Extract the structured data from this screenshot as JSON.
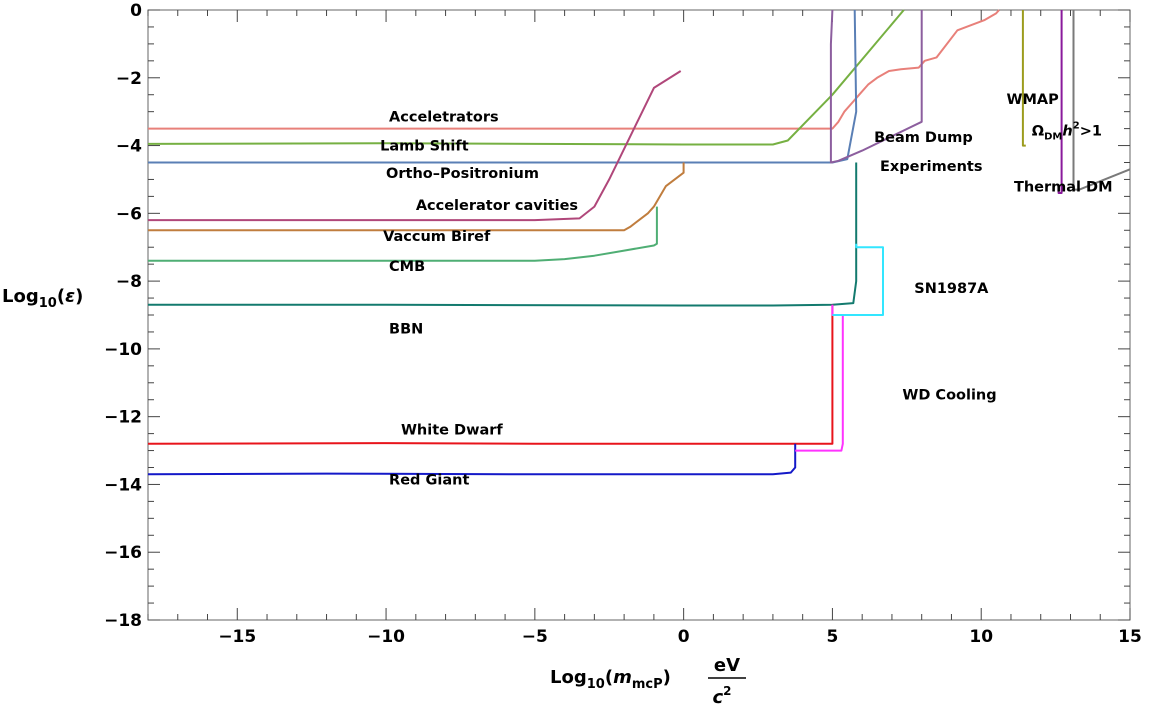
{
  "chart_data": {
    "type": "line",
    "title": "",
    "xlabel": {
      "prefix": "Log",
      "sub": "10",
      "open": "(",
      "var": "m",
      "var_sub": "mcP",
      "close": ")",
      "unit_num": "eV",
      "unit_den": "c",
      "unit_den_sup": "2"
    },
    "ylabel": {
      "prefix": "Log",
      "sub": "10",
      "open": "(",
      "var": "ε",
      "close": ")"
    },
    "xlim": [
      -18,
      15
    ],
    "ylim": [
      -18,
      0
    ],
    "xticks": [
      -15,
      -10,
      -5,
      0,
      5,
      10,
      15
    ],
    "xtick_labels": [
      "−15",
      "−10",
      "−5",
      "0",
      "5",
      "10",
      "15"
    ],
    "yticks": [
      0,
      -2,
      -4,
      -6,
      -8,
      -10,
      -12,
      -14,
      -16,
      -18
    ],
    "ytick_labels": [
      "0",
      "−2",
      "−4",
      "−6",
      "−8",
      "−10",
      "−12",
      "−14",
      "−16",
      "−18"
    ],
    "grid": false,
    "series": [
      {
        "name": "Acceletrators",
        "color": "#e8807a",
        "x": [
          -18,
          -10,
          0,
          5,
          5.2,
          5.4,
          5.7,
          5.9,
          6.2,
          6.5,
          6.9,
          7.3,
          7.9,
          8.1,
          8.5,
          9.2,
          10.1,
          10.5,
          10.6
        ],
        "y": [
          -3.5,
          -3.5,
          -3.5,
          -3.5,
          -3.3,
          -3.0,
          -2.7,
          -2.5,
          -2.2,
          -2.0,
          -1.8,
          -1.75,
          -1.7,
          -1.5,
          -1.4,
          -0.6,
          -0.3,
          -0.1,
          0
        ]
      },
      {
        "name": "Lamb Shift",
        "color": "#76b042",
        "x": [
          -18,
          -10,
          -5,
          0,
          3,
          3.5,
          5,
          7.4
        ],
        "y": [
          -3.95,
          -3.93,
          -3.95,
          -3.97,
          -3.97,
          -3.85,
          -2.5,
          0
        ]
      },
      {
        "name": "Ortho–Positronium",
        "color": "#5a7fb5",
        "x": [
          -18,
          -10,
          0,
          2.4,
          3.8,
          5,
          5.5,
          5.8,
          5.75
        ],
        "y": [
          -4.5,
          -4.5,
          -4.5,
          -4.5,
          -4.5,
          -4.5,
          -4.4,
          -3.0,
          0
        ]
      },
      {
        "name": "Accelerator cavities",
        "color": "#b0477a",
        "x": [
          -18,
          -10,
          -5,
          -3.5,
          -3,
          -2.5,
          -2,
          -1.5,
          -1,
          -0.1
        ],
        "y": [
          -6.2,
          -6.2,
          -6.2,
          -6.15,
          -5.8,
          -5.0,
          -4.1,
          -3.2,
          -2.3,
          -1.8
        ]
      },
      {
        "name": "Vaccum Biref",
        "color": "#c07d3e",
        "x": [
          -18,
          -10,
          -5,
          -2,
          -1.8,
          -1.2,
          -1,
          -0.6,
          0,
          0
        ],
        "y": [
          -6.5,
          -6.5,
          -6.5,
          -6.5,
          -6.4,
          -6.0,
          -5.8,
          -5.2,
          -4.8,
          -4.5
        ]
      },
      {
        "name": "CMB",
        "color": "#4fae74",
        "x": [
          -18,
          -10,
          -5,
          -4,
          -3,
          -2,
          -1,
          -0.9,
          -0.9
        ],
        "y": [
          -7.4,
          -7.4,
          -7.4,
          -7.35,
          -7.25,
          -7.1,
          -6.95,
          -6.9,
          -5.8
        ]
      },
      {
        "name": "BBN",
        "color": "#137a6e",
        "x": [
          -18,
          -10,
          0,
          3,
          5,
          5.7,
          5.8,
          5.8
        ],
        "y": [
          -8.7,
          -8.7,
          -8.72,
          -8.72,
          -8.7,
          -8.65,
          -8.0,
          -4.5
        ]
      },
      {
        "name": "White Dwarf",
        "color": "#e8141b",
        "x": [
          -18,
          -10,
          -5,
          0,
          3,
          5,
          5,
          5
        ],
        "y": [
          -12.8,
          -12.78,
          -12.8,
          -12.8,
          -12.8,
          -12.8,
          -12.5,
          -8.7
        ]
      },
      {
        "name": "Red Giant",
        "color": "#1419c8",
        "x": [
          -18,
          -12,
          -5,
          0,
          3,
          3.6,
          3.75,
          3.75
        ],
        "y": [
          -13.7,
          -13.68,
          -13.7,
          -13.7,
          -13.7,
          -13.65,
          -13.5,
          -12.8
        ]
      },
      {
        "name": "WD Cooling",
        "color": "#ff33ff",
        "x": [
          3.75,
          5.3,
          5.35,
          5.35,
          5,
          5
        ],
        "y": [
          -13.0,
          -13.0,
          -12.8,
          -9.0,
          -9.0,
          -8.7
        ]
      },
      {
        "name": "SN1987A",
        "color": "#33e6ff",
        "x": [
          5,
          6.7,
          6.7,
          5.8,
          5.8
        ],
        "y": [
          -9.0,
          -9.0,
          -7.0,
          -7.0,
          -6.9
        ]
      },
      {
        "name": "Beam Dump Experiments",
        "color": "#8c5e9e",
        "x": [
          5,
          4.95,
          4.95,
          5.2,
          5.6,
          6,
          8.0,
          8.0,
          8.0
        ],
        "y": [
          0,
          -1.0,
          -4.5,
          -4.45,
          -4.3,
          -4.15,
          -3.3,
          -2.5,
          0
        ]
      },
      {
        "name": "WMAP",
        "color": "#9c9c1e",
        "x": [
          11.4,
          11.4,
          11.5
        ],
        "y": [
          0,
          -4.0,
          -4.0
        ]
      },
      {
        "name": "ΩDMh²>1",
        "color": "#8a1a9c",
        "x": [
          12.7,
          12.7,
          12.6,
          12.6
        ],
        "y": [
          0,
          -5.4,
          -5.4,
          -5.35
        ]
      },
      {
        "name": "Thermal DM",
        "color": "#7a7a7a",
        "x": [
          13.1,
          13.1,
          13.3,
          15
        ],
        "y": [
          0,
          -5.3,
          -5.3,
          -4.7
        ]
      }
    ],
    "annotations": [
      {
        "text": "Acceletrators",
        "x": -9.9,
        "y": -3.29
      },
      {
        "text": "Lamb Shift",
        "x": -10.2,
        "y": -4.15
      },
      {
        "text": "Ortho–Positronium",
        "x": -10.0,
        "y": -4.95
      },
      {
        "text": "Accelerator cavities",
        "x": -9.0,
        "y": -5.9
      },
      {
        "text": "Vaccum Biref",
        "x": -10.1,
        "y": -6.82
      },
      {
        "text": "CMB",
        "x": -9.9,
        "y": -7.7
      },
      {
        "text": "BBN",
        "x": -9.9,
        "y": -9.55
      },
      {
        "text": "White Dwarf",
        "x": -9.5,
        "y": -12.52
      },
      {
        "text": "Red Giant",
        "x": -9.9,
        "y": -14.0
      },
      {
        "text": "Beam Dump",
        "x": 6.4,
        "y": -3.9
      },
      {
        "text": "Experiments",
        "x": 6.6,
        "y": -4.75
      },
      {
        "text": "SN1987A",
        "x": 7.75,
        "y": -8.35
      },
      {
        "text": "WD Cooling",
        "x": 7.35,
        "y": -11.5
      },
      {
        "text": "WMAP",
        "x": 10.85,
        "y": -2.78
      },
      {
        "text": "Thermal DM",
        "x": 11.1,
        "y": -5.35
      }
    ],
    "omega_label": {
      "omega": "Ω",
      "sub": "DM",
      "h": "h",
      "sup": "2",
      "rest": ">1",
      "x": 11.7,
      "y": -3.7
    }
  }
}
